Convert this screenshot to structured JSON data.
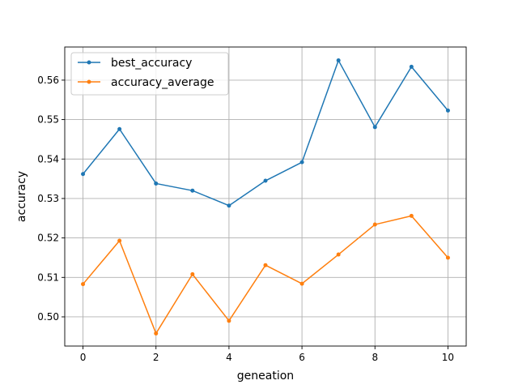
{
  "colors": {
    "best_accuracy": "#1f77b4",
    "accuracy_average": "#ff7f0e",
    "grid": "#b0b0b0",
    "background": "#ffffff"
  },
  "chart_data": {
    "type": "line",
    "title": "",
    "xlabel": "geneation",
    "ylabel": "accuracy",
    "x": [
      0,
      1,
      2,
      3,
      4,
      5,
      6,
      7,
      8,
      9,
      10
    ],
    "xlim": [
      -0.5,
      10.5
    ],
    "ylim": [
      0.4926,
      0.5684
    ],
    "xticks": [
      0,
      2,
      4,
      6,
      8,
      10
    ],
    "yticks": [
      0.5,
      0.51,
      0.52,
      0.53,
      0.54,
      0.55,
      0.56
    ],
    "ytick_labels": [
      "0.50",
      "0.51",
      "0.52",
      "0.53",
      "0.54",
      "0.55",
      "0.56"
    ],
    "grid": true,
    "legend_position": "top-left",
    "marker": "circle",
    "series": [
      {
        "name": "best_accuracy",
        "values": [
          0.5362,
          0.5476,
          0.5338,
          0.532,
          0.5282,
          0.5345,
          0.5392,
          0.565,
          0.5481,
          0.5634,
          0.5523
        ]
      },
      {
        "name": "accuracy_average",
        "values": [
          0.5083,
          0.5193,
          0.4958,
          0.5108,
          0.499,
          0.5131,
          0.5084,
          0.5158,
          0.5234,
          0.5256,
          0.515
        ]
      }
    ]
  }
}
